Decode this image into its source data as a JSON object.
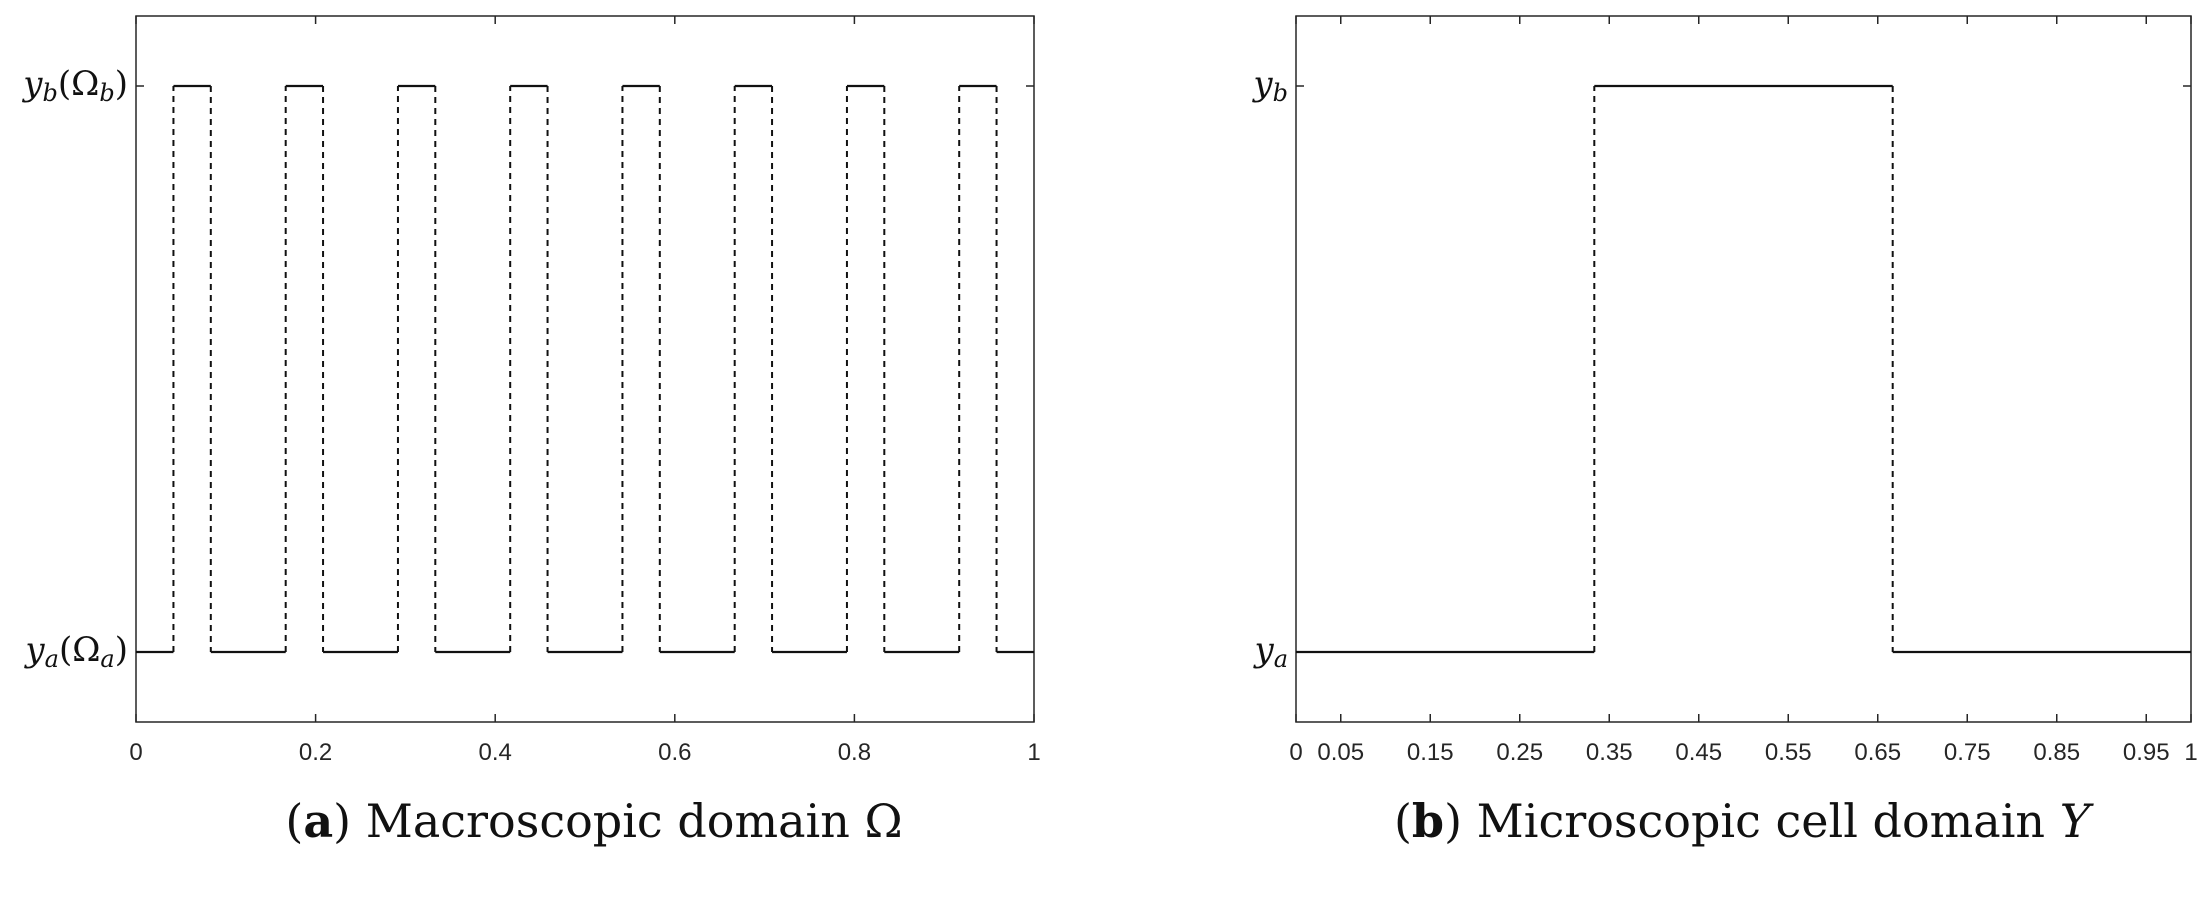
{
  "chart_data": [
    {
      "type": "line",
      "panel_label": "a",
      "caption": "Macroscopic domain Ω",
      "xlim": [
        0,
        1
      ],
      "x_ticks": [
        "0",
        "0.2",
        "0.4",
        "0.6",
        "0.8",
        "1"
      ],
      "x_tick_values": [
        0,
        0.2,
        0.4,
        0.6,
        0.8,
        1
      ],
      "y_levels": [
        0,
        1
      ],
      "y_tick_labels": [
        "y_a(Ω_a)",
        "y_b(Ω_b)"
      ],
      "steps": [
        {
          "x": 0,
          "y": 0
        },
        {
          "x": 0.0417,
          "y": 1
        },
        {
          "x": 0.0833,
          "y": 0
        },
        {
          "x": 0.1667,
          "y": 1
        },
        {
          "x": 0.2083,
          "y": 0
        },
        {
          "x": 0.2917,
          "y": 1
        },
        {
          "x": 0.3333,
          "y": 0
        },
        {
          "x": 0.4167,
          "y": 1
        },
        {
          "x": 0.4583,
          "y": 0
        },
        {
          "x": 0.5417,
          "y": 1
        },
        {
          "x": 0.5833,
          "y": 0
        },
        {
          "x": 0.6667,
          "y": 1
        },
        {
          "x": 0.7083,
          "y": 0
        },
        {
          "x": 0.7917,
          "y": 1
        },
        {
          "x": 0.8333,
          "y": 0
        },
        {
          "x": 0.9167,
          "y": 1
        },
        {
          "x": 0.9583,
          "y": 0
        },
        {
          "x": 1,
          "y": 0
        }
      ],
      "grid": false,
      "legend": "none"
    },
    {
      "type": "line",
      "panel_label": "b",
      "caption": "Microscopic cell domain Y",
      "xlim": [
        0,
        1
      ],
      "x_ticks": [
        "0",
        "0.05",
        "0.15",
        "0.25",
        "0.35",
        "0.45",
        "0.55",
        "0.65",
        "0.75",
        "0.85",
        "0.95",
        "1"
      ],
      "x_tick_values": [
        0,
        0.05,
        0.15,
        0.25,
        0.35,
        0.45,
        0.55,
        0.65,
        0.75,
        0.85,
        0.95,
        1
      ],
      "y_levels": [
        0,
        1
      ],
      "y_tick_labels": [
        "y_a",
        "y_b"
      ],
      "steps": [
        {
          "x": 0,
          "y": 0
        },
        {
          "x": 0.3333,
          "y": 1
        },
        {
          "x": 0.6667,
          "y": 0
        },
        {
          "x": 1,
          "y": 0
        }
      ],
      "grid": false,
      "legend": "none"
    }
  ]
}
